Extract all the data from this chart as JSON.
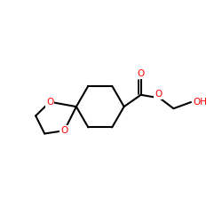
{
  "bg_color": "#ffffff",
  "bond_color": "#000000",
  "oxygen_color": "#ff0000",
  "line_width": 1.5,
  "figsize": [
    2.5,
    2.5
  ],
  "dpi": 100,
  "xlim": [
    0,
    10
  ],
  "ylim": [
    0,
    10
  ]
}
